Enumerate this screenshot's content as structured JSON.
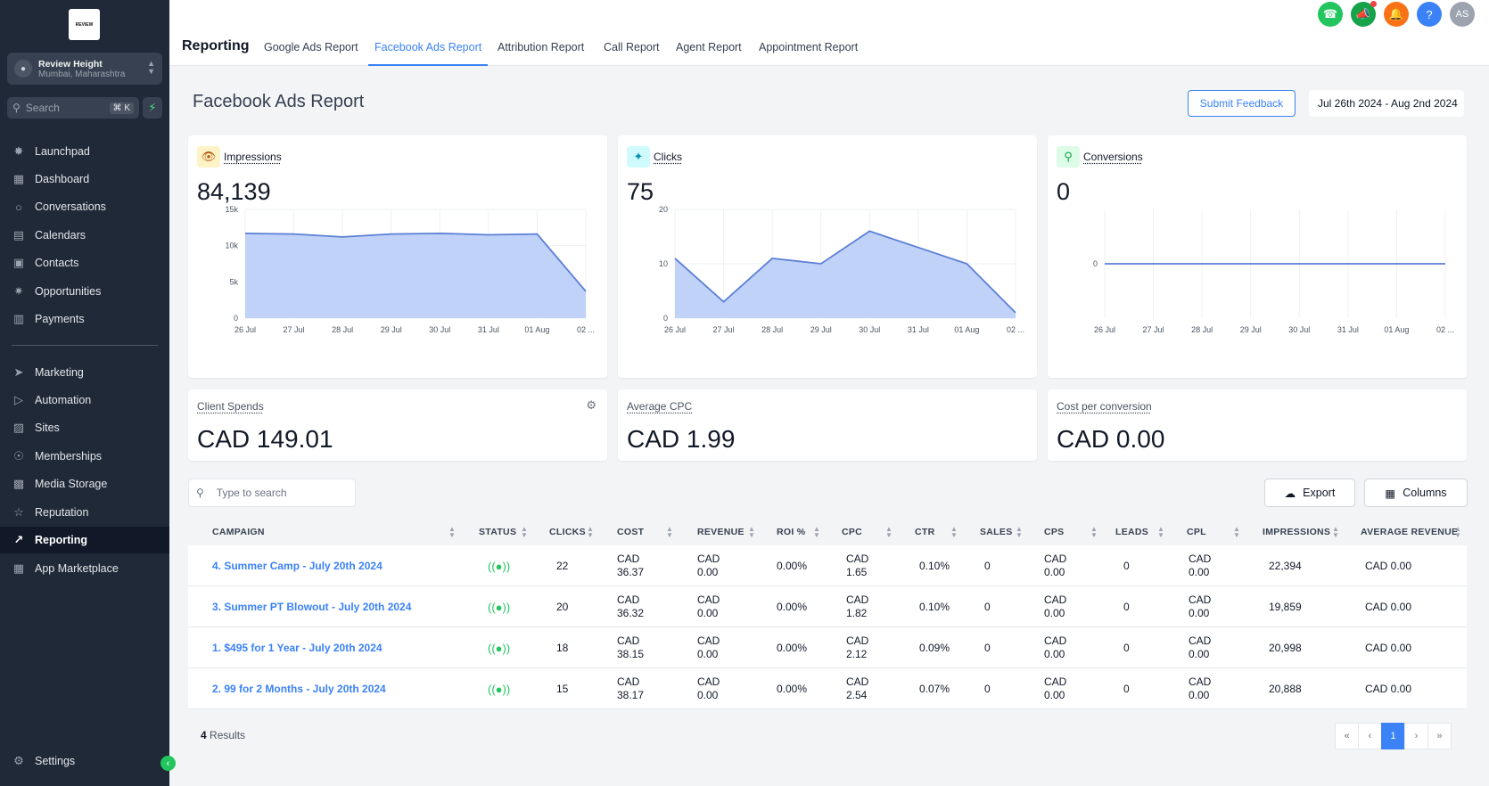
{
  "sidebar": {
    "logo_text": "REVIEW",
    "account": {
      "name": "Review Height",
      "location": "Mumbai, Maharashtra"
    },
    "search_placeholder": "Search",
    "search_shortcut": "⌘ K",
    "items": [
      {
        "label": "Launchpad",
        "icon": "rocket-icon"
      },
      {
        "label": "Dashboard",
        "icon": "grid-icon"
      },
      {
        "label": "Conversations",
        "icon": "chat-icon"
      },
      {
        "label": "Calendars",
        "icon": "calendar-icon"
      },
      {
        "label": "Contacts",
        "icon": "contacts-icon"
      },
      {
        "label": "Opportunities",
        "icon": "network-icon"
      },
      {
        "label": "Payments",
        "icon": "receipt-icon"
      },
      {
        "label": "Marketing",
        "icon": "send-icon"
      },
      {
        "label": "Automation",
        "icon": "automation-icon"
      },
      {
        "label": "Sites",
        "icon": "sites-icon"
      },
      {
        "label": "Memberships",
        "icon": "badge-icon"
      },
      {
        "label": "Media Storage",
        "icon": "image-icon"
      },
      {
        "label": "Reputation",
        "icon": "star-icon"
      },
      {
        "label": "Reporting",
        "icon": "trend-icon"
      },
      {
        "label": "App Marketplace",
        "icon": "apps-icon"
      }
    ],
    "settings_label": "Settings"
  },
  "header": {
    "title": "Reporting",
    "tabs": [
      "Google Ads Report",
      "Facebook Ads Report",
      "Attribution Report",
      "Call Report",
      "Agent Report",
      "Appointment Report"
    ],
    "active_tab": "Facebook Ads Report",
    "avatar_initials": "AS"
  },
  "page": {
    "title": "Facebook Ads Report",
    "feedback_label": "Submit Feedback",
    "date_range": "Jul 26th 2024 - Aug 2nd 2024"
  },
  "metrics": {
    "impressions": {
      "label": "Impressions",
      "value": "84,139"
    },
    "clicks": {
      "label": "Clicks",
      "value": "75"
    },
    "conversions": {
      "label": "Conversions",
      "value": "0"
    },
    "client_spends": {
      "label": "Client Spends",
      "value": "CAD 149.01"
    },
    "avg_cpc": {
      "label": "Average CPC",
      "value": "CAD 1.99"
    },
    "cost_per_conversion": {
      "label": "Cost per conversion",
      "value": "CAD 0.00"
    }
  },
  "chart_data": [
    {
      "type": "area",
      "x": [
        "26 Jul",
        "27 Jul",
        "28 Jul",
        "29 Jul",
        "30 Jul",
        "31 Jul",
        "01 Aug",
        "02 ..."
      ],
      "values": [
        11700,
        11600,
        11200,
        11600,
        11700,
        11500,
        11600,
        3700
      ],
      "yticks": [
        "0",
        "5k",
        "10k",
        "15k"
      ],
      "ylim": [
        0,
        15000
      ],
      "color": "#5b7fd6"
    },
    {
      "type": "area",
      "x": [
        "26 Jul",
        "27 Jul",
        "28 Jul",
        "29 Jul",
        "30 Jul",
        "31 Jul",
        "01 Aug",
        "02 ..."
      ],
      "values": [
        11,
        3,
        11,
        10,
        16,
        13,
        10,
        1
      ],
      "yticks": [
        "0",
        "10",
        "20"
      ],
      "ylim": [
        0,
        20
      ],
      "color": "#5b7fd6"
    },
    {
      "type": "line",
      "x": [
        "26 Jul",
        "27 Jul",
        "28 Jul",
        "29 Jul",
        "30 Jul",
        "31 Jul",
        "01 Aug",
        "02 ..."
      ],
      "values": [
        0,
        0,
        0,
        0,
        0,
        0,
        0,
        0
      ],
      "yticks": [
        "0"
      ],
      "ylim": [
        -1,
        1
      ],
      "color": "#5b7fd6"
    }
  ],
  "table": {
    "search_placeholder": "Type to search",
    "export_label": "Export",
    "columns_label": "Columns",
    "columns": [
      "CAMPAIGN",
      "STATUS",
      "CLICKS",
      "COST",
      "REVENUE",
      "ROI %",
      "CPC",
      "CTR",
      "SALES",
      "CPS",
      "LEADS",
      "CPL",
      "IMPRESSIONS",
      "AVERAGE REVENUE"
    ],
    "rows": [
      {
        "campaign": "4. Summer Camp - July 20th 2024",
        "clicks": "22",
        "cost1": "CAD",
        "cost2": "36.37",
        "rev1": "CAD",
        "rev2": "0.00",
        "roi": "0.00%",
        "cpc1": "CAD",
        "cpc2": "1.65",
        "ctr": "0.10%",
        "sales": "0",
        "cps1": "CAD",
        "cps2": "0.00",
        "leads": "0",
        "cpl1": "CAD",
        "cpl2": "0.00",
        "impressions": "22,394",
        "avg_rev": "CAD 0.00"
      },
      {
        "campaign": "3. Summer PT Blowout - July 20th 2024",
        "clicks": "20",
        "cost1": "CAD",
        "cost2": "36.32",
        "rev1": "CAD",
        "rev2": "0.00",
        "roi": "0.00%",
        "cpc1": "CAD",
        "cpc2": "1.82",
        "ctr": "0.10%",
        "sales": "0",
        "cps1": "CAD",
        "cps2": "0.00",
        "leads": "0",
        "cpl1": "CAD",
        "cpl2": "0.00",
        "impressions": "19,859",
        "avg_rev": "CAD 0.00"
      },
      {
        "campaign": "1. $495 for 1 Year - July 20th 2024",
        "clicks": "18",
        "cost1": "CAD",
        "cost2": "38.15",
        "rev1": "CAD",
        "rev2": "0.00",
        "roi": "0.00%",
        "cpc1": "CAD",
        "cpc2": "2.12",
        "ctr": "0.09%",
        "sales": "0",
        "cps1": "CAD",
        "cps2": "0.00",
        "leads": "0",
        "cpl1": "CAD",
        "cpl2": "0.00",
        "impressions": "20,998",
        "avg_rev": "CAD 0.00"
      },
      {
        "campaign": "2. 99 for 2 Months - July 20th 2024",
        "clicks": "15",
        "cost1": "CAD",
        "cost2": "38.17",
        "rev1": "CAD",
        "rev2": "0.00",
        "roi": "0.00%",
        "cpc1": "CAD",
        "cpc2": "2.54",
        "ctr": "0.07%",
        "sales": "0",
        "cps1": "CAD",
        "cps2": "0.00",
        "leads": "0",
        "cpl1": "CAD",
        "cpl2": "0.00",
        "impressions": "20,888",
        "avg_rev": "CAD 0.00"
      }
    ],
    "results_count": "4",
    "results_label": "Results",
    "current_page": "1"
  }
}
